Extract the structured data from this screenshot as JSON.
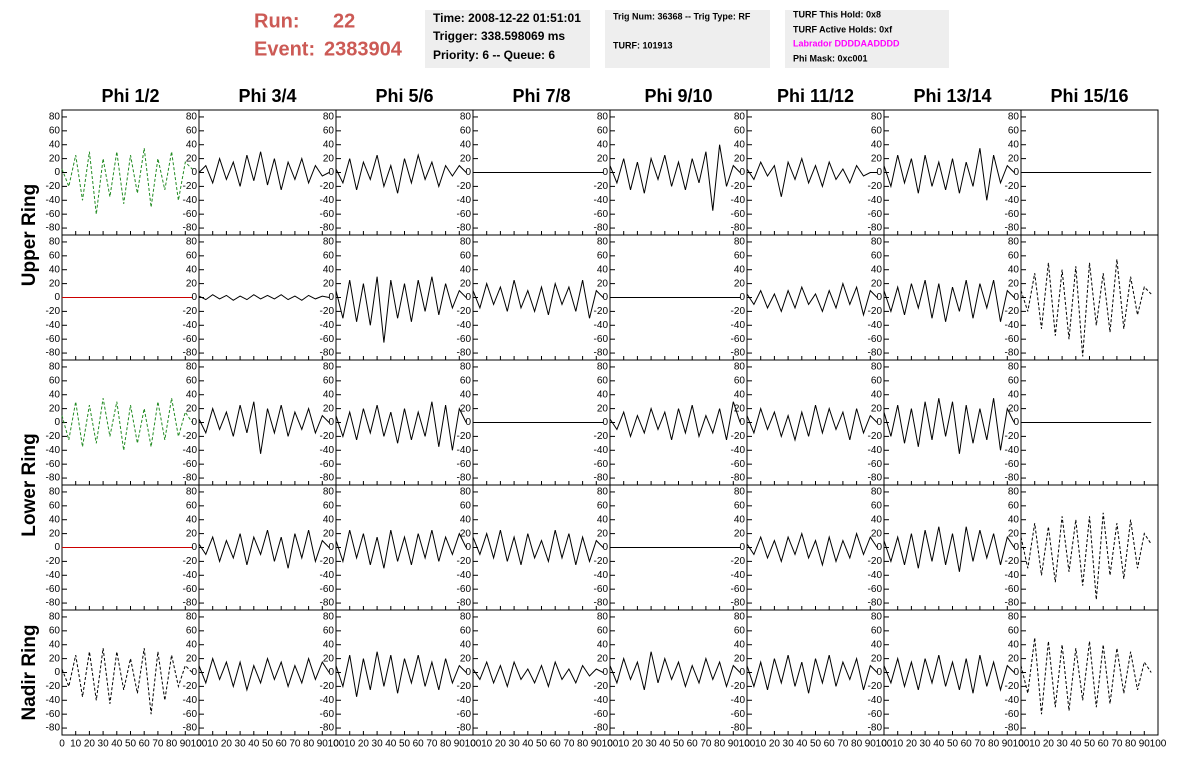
{
  "header": {
    "run_label": "Run:",
    "run": "22",
    "event_label": "Event:",
    "event": "2383904",
    "info_boxes": [
      [
        "Time: 2008-12-22 01:51:01",
        "Trigger: 338.598069 ms",
        "Priority: 6 -- Queue: 6"
      ],
      [
        "Trig Num: 36368 -- Trig Type: RF",
        "TURF: 101913"
      ],
      [
        "TURF This Hold: 0x8",
        "TURF Active Holds: 0xf",
        "Labrador DDDDAADDDD",
        "Phi Mask: 0xc001"
      ]
    ]
  },
  "columns": [
    "Phi 1/2",
    "Phi 3/4",
    "Phi 5/6",
    "Phi 7/8",
    "Phi 9/10",
    "Phi 11/12",
    "Phi 13/14",
    "Phi 15/16"
  ],
  "ring_labels": [
    "Upper Ring",
    "Lower Ring",
    "Nadir Ring"
  ],
  "axes": {
    "xlim": [
      0,
      100
    ],
    "ylim": [
      -90,
      90
    ],
    "xticks": [
      0,
      10,
      20,
      30,
      40,
      50,
      60,
      70,
      80,
      90,
      100
    ],
    "yticks": [
      80,
      60,
      40,
      20,
      0,
      -20,
      -40,
      -60,
      -80
    ]
  },
  "x": [
    0,
    5,
    10,
    15,
    20,
    25,
    30,
    35,
    40,
    45,
    50,
    55,
    60,
    65,
    70,
    75,
    80,
    85,
    90,
    95
  ],
  "panels": [
    [
      {
        "color": "#228b22",
        "dashed": true,
        "values": [
          5,
          -20,
          25,
          -40,
          30,
          -60,
          20,
          -35,
          30,
          -45,
          25,
          -30,
          35,
          -50,
          20,
          -25,
          30,
          -40,
          15,
          5
        ]
      },
      {
        "color": "#000000",
        "dashed": false,
        "values": [
          0,
          10,
          -15,
          20,
          -10,
          15,
          -20,
          25,
          -12,
          30,
          -18,
          20,
          -25,
          15,
          -10,
          20,
          -15,
          10,
          -5,
          0
        ]
      },
      {
        "color": "#000000",
        "dashed": false,
        "values": [
          5,
          -15,
          20,
          -25,
          15,
          -10,
          25,
          -20,
          10,
          -30,
          20,
          -15,
          25,
          -10,
          15,
          -20,
          10,
          -5,
          10,
          0
        ]
      },
      {
        "color": "#000000",
        "dashed": false,
        "values": [
          0,
          0,
          0,
          0,
          0,
          0,
          0,
          0,
          0,
          0,
          0,
          0,
          0,
          0,
          0,
          0,
          0,
          0,
          0,
          0
        ]
      },
      {
        "color": "#000000",
        "dashed": false,
        "values": [
          10,
          -15,
          20,
          -25,
          15,
          -30,
          20,
          -10,
          25,
          -20,
          15,
          -25,
          20,
          -15,
          30,
          -55,
          40,
          -20,
          10,
          0
        ]
      },
      {
        "color": "#000000",
        "dashed": false,
        "values": [
          5,
          -10,
          15,
          -5,
          10,
          -35,
          15,
          -10,
          20,
          -15,
          10,
          -20,
          15,
          -10,
          5,
          -15,
          10,
          -5,
          0,
          0
        ]
      },
      {
        "color": "#000000",
        "dashed": false,
        "values": [
          10,
          -20,
          25,
          -15,
          20,
          -30,
          25,
          -20,
          15,
          -25,
          20,
          -30,
          15,
          -20,
          35,
          -40,
          25,
          -15,
          10,
          0
        ]
      },
      {
        "color": "#000000",
        "dashed": false,
        "values": [
          0,
          0,
          0,
          0,
          0,
          0,
          0,
          0,
          0,
          0,
          0,
          0,
          0,
          0,
          0,
          0,
          0,
          0,
          0,
          0
        ]
      }
    ],
    [
      {
        "color": "#cc0000",
        "dashed": false,
        "values": [
          0,
          0,
          0,
          0,
          0,
          0,
          0,
          0,
          0,
          0,
          0,
          0,
          0,
          0,
          0,
          0,
          0,
          0,
          0,
          0
        ]
      },
      {
        "color": "#000000",
        "dashed": false,
        "values": [
          2,
          -3,
          4,
          -2,
          3,
          -4,
          2,
          -3,
          4,
          -2,
          3,
          -2,
          4,
          -3,
          2,
          -4,
          3,
          -2,
          2,
          0
        ]
      },
      {
        "color": "#000000",
        "dashed": false,
        "values": [
          10,
          -30,
          25,
          -35,
          20,
          -40,
          30,
          -65,
          25,
          -30,
          20,
          -35,
          25,
          -20,
          30,
          -25,
          20,
          -15,
          10,
          0
        ]
      },
      {
        "color": "#000000",
        "dashed": false,
        "values": [
          10,
          -15,
          20,
          -10,
          15,
          -20,
          25,
          -15,
          10,
          -20,
          15,
          -25,
          20,
          -10,
          15,
          -20,
          25,
          -30,
          10,
          0
        ]
      },
      {
        "color": "#000000",
        "dashed": false,
        "values": [
          0,
          0,
          0,
          0,
          0,
          0,
          0,
          0,
          0,
          0,
          0,
          0,
          0,
          0,
          0,
          0,
          0,
          0,
          0,
          0
        ]
      },
      {
        "color": "#000000",
        "dashed": false,
        "values": [
          5,
          -10,
          10,
          -15,
          5,
          -20,
          10,
          -15,
          15,
          -10,
          5,
          -20,
          10,
          -15,
          20,
          -10,
          15,
          -25,
          10,
          0
        ]
      },
      {
        "color": "#000000",
        "dashed": false,
        "values": [
          10,
          -20,
          15,
          -25,
          20,
          -15,
          25,
          -30,
          20,
          -35,
          15,
          -20,
          25,
          -30,
          20,
          -15,
          25,
          -35,
          10,
          0
        ]
      },
      {
        "color": "#000000",
        "dashed": true,
        "values": [
          10,
          -20,
          35,
          -45,
          50,
          -55,
          40,
          -60,
          45,
          -85,
          50,
          -40,
          35,
          -50,
          55,
          -45,
          30,
          -25,
          15,
          5
        ]
      }
    ],
    [
      {
        "color": "#228b22",
        "dashed": true,
        "values": [
          10,
          -25,
          30,
          -35,
          25,
          -30,
          35,
          -20,
          30,
          -40,
          25,
          -30,
          20,
          -35,
          30,
          -25,
          35,
          -20,
          15,
          0
        ]
      },
      {
        "color": "#000000",
        "dashed": false,
        "values": [
          5,
          -15,
          20,
          -10,
          15,
          -20,
          25,
          -15,
          30,
          -45,
          20,
          -15,
          25,
          -20,
          15,
          -10,
          20,
          -15,
          10,
          0
        ]
      },
      {
        "color": "#000000",
        "dashed": false,
        "values": [
          10,
          -20,
          15,
          -25,
          20,
          -15,
          25,
          -20,
          15,
          -30,
          20,
          -25,
          15,
          -20,
          30,
          -35,
          25,
          -40,
          20,
          0
        ]
      },
      {
        "color": "#000000",
        "dashed": false,
        "values": [
          0,
          0,
          0,
          0,
          0,
          0,
          0,
          0,
          0,
          0,
          0,
          0,
          0,
          0,
          0,
          0,
          0,
          0,
          0,
          0
        ]
      },
      {
        "color": "#000000",
        "dashed": false,
        "values": [
          5,
          -10,
          15,
          -20,
          10,
          -15,
          20,
          -10,
          15,
          -25,
          20,
          -15,
          25,
          -20,
          10,
          -15,
          20,
          -25,
          30,
          0
        ]
      },
      {
        "color": "#000000",
        "dashed": false,
        "values": [
          10,
          -15,
          20,
          -10,
          15,
          -20,
          10,
          -25,
          15,
          -20,
          25,
          -15,
          20,
          -10,
          15,
          -25,
          20,
          -15,
          10,
          0
        ]
      },
      {
        "color": "#000000",
        "dashed": false,
        "values": [
          15,
          -20,
          25,
          -30,
          20,
          -35,
          30,
          -25,
          35,
          -20,
          30,
          -45,
          25,
          -30,
          20,
          -25,
          35,
          -40,
          20,
          0
        ]
      },
      {
        "color": "#000000",
        "dashed": false,
        "values": [
          0,
          0,
          0,
          0,
          0,
          0,
          0,
          0,
          0,
          0,
          0,
          0,
          0,
          0,
          0,
          0,
          0,
          0,
          0,
          0
        ]
      }
    ],
    [
      {
        "color": "#cc0000",
        "dashed": false,
        "values": [
          0,
          0,
          0,
          0,
          0,
          0,
          0,
          0,
          0,
          0,
          0,
          0,
          0,
          0,
          0,
          0,
          0,
          0,
          0,
          0
        ]
      },
      {
        "color": "#000000",
        "dashed": false,
        "values": [
          5,
          -10,
          15,
          -20,
          10,
          -15,
          20,
          -25,
          15,
          -10,
          25,
          -20,
          15,
          -30,
          20,
          -15,
          25,
          -20,
          10,
          0
        ]
      },
      {
        "color": "#000000",
        "dashed": false,
        "values": [
          10,
          -20,
          25,
          -15,
          20,
          -25,
          15,
          -30,
          25,
          -20,
          15,
          -25,
          20,
          -15,
          25,
          -20,
          15,
          -10,
          20,
          0
        ]
      },
      {
        "color": "#000000",
        "dashed": false,
        "values": [
          15,
          -10,
          20,
          -15,
          25,
          -20,
          15,
          -25,
          20,
          -15,
          10,
          -20,
          25,
          -15,
          20,
          -25,
          15,
          -20,
          10,
          0
        ]
      },
      {
        "color": "#000000",
        "dashed": false,
        "values": [
          0,
          0,
          0,
          0,
          0,
          0,
          0,
          0,
          0,
          0,
          0,
          0,
          0,
          0,
          0,
          0,
          0,
          0,
          0,
          0
        ]
      },
      {
        "color": "#000000",
        "dashed": false,
        "values": [
          5,
          -10,
          15,
          -15,
          10,
          -20,
          15,
          -10,
          20,
          -15,
          10,
          -25,
          15,
          -20,
          10,
          -15,
          20,
          -10,
          15,
          0
        ]
      },
      {
        "color": "#000000",
        "dashed": false,
        "values": [
          10,
          -20,
          15,
          -25,
          20,
          -30,
          25,
          -20,
          30,
          -25,
          20,
          -35,
          30,
          -20,
          25,
          -15,
          20,
          -25,
          15,
          0
        ]
      },
      {
        "color": "#000000",
        "dashed": true,
        "values": [
          15,
          -30,
          35,
          -40,
          30,
          -50,
          45,
          -35,
          40,
          -55,
          45,
          -75,
          50,
          -40,
          35,
          -45,
          40,
          -30,
          20,
          5
        ]
      }
    ],
    [
      {
        "color": "#000000",
        "dashed": true,
        "values": [
          5,
          -20,
          25,
          -35,
          30,
          -40,
          35,
          -45,
          30,
          -25,
          20,
          -30,
          35,
          -60,
          30,
          -40,
          25,
          -20,
          10,
          0
        ]
      },
      {
        "color": "#000000",
        "dashed": false,
        "values": [
          10,
          -15,
          20,
          -10,
          15,
          -20,
          15,
          -25,
          10,
          -15,
          20,
          -10,
          15,
          -20,
          10,
          -15,
          20,
          -10,
          15,
          0
        ]
      },
      {
        "color": "#000000",
        "dashed": false,
        "values": [
          10,
          -20,
          25,
          -35,
          20,
          -25,
          30,
          -20,
          25,
          -30,
          20,
          -15,
          25,
          -20,
          15,
          -25,
          20,
          -15,
          10,
          0
        ]
      },
      {
        "color": "#000000",
        "dashed": false,
        "values": [
          5,
          -10,
          15,
          -15,
          10,
          -20,
          15,
          -10,
          5,
          -15,
          10,
          -20,
          15,
          -10,
          5,
          -15,
          10,
          -5,
          5,
          0
        ]
      },
      {
        "color": "#000000",
        "dashed": false,
        "values": [
          10,
          -15,
          20,
          -10,
          15,
          -25,
          30,
          -15,
          20,
          -10,
          15,
          -20,
          10,
          -15,
          20,
          -10,
          15,
          -20,
          10,
          0
        ]
      },
      {
        "color": "#000000",
        "dashed": false,
        "values": [
          10,
          -20,
          15,
          -25,
          20,
          -15,
          25,
          -20,
          15,
          -30,
          20,
          -15,
          25,
          -20,
          15,
          -10,
          20,
          -25,
          10,
          0
        ]
      },
      {
        "color": "#000000",
        "dashed": false,
        "values": [
          10,
          -15,
          20,
          -20,
          15,
          -25,
          20,
          -15,
          25,
          -20,
          15,
          -25,
          20,
          -30,
          25,
          -20,
          15,
          -25,
          10,
          0
        ]
      },
      {
        "color": "#000000",
        "dashed": true,
        "values": [
          10,
          -30,
          50,
          -60,
          45,
          -50,
          40,
          -55,
          35,
          -40,
          45,
          -50,
          40,
          -45,
          35,
          -30,
          30,
          -25,
          15,
          0
        ]
      }
    ]
  ]
}
